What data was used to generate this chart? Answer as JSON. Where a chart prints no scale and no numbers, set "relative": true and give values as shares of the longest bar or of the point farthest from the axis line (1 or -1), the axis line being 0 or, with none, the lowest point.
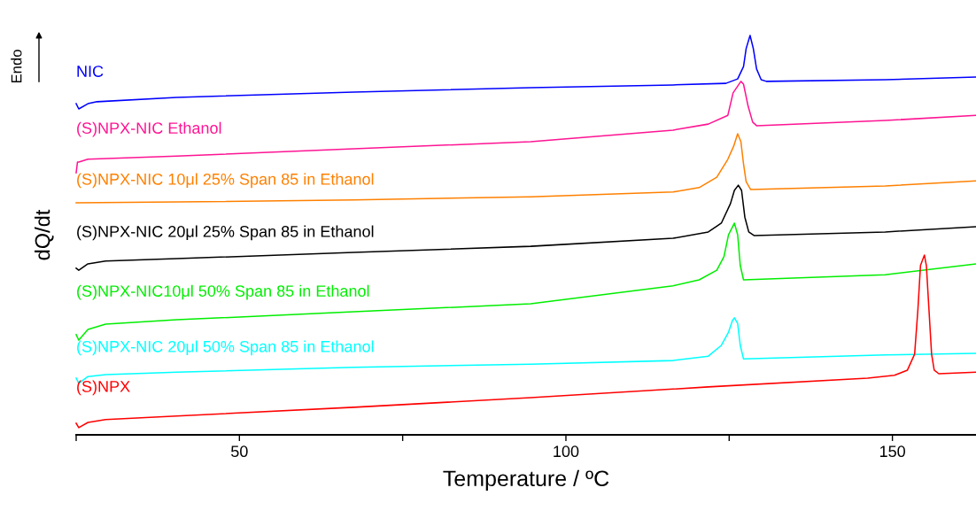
{
  "chart_data": {
    "type": "line",
    "relative": true,
    "xlabel": "Temperature / ºC",
    "ylabel": "dQ/dt",
    "annotations": [
      "Endo"
    ],
    "xlim": [
      25,
      162.8
    ],
    "xticks": [
      {
        "value": 25,
        "label": null
      },
      50,
      {
        "value": 75,
        "label": null
      },
      100,
      {
        "value": 125,
        "label": null
      },
      150
    ],
    "legend": false,
    "grid": false,
    "marker": "none",
    "line_style": "solid",
    "tick_labels": "x",
    "series": [
      {
        "name": "NIC",
        "color": "#0000ff",
        "x": [
          25.0,
          25.4,
          26.8,
          28.2,
          40.4,
          67.5,
          94.6,
          116.4,
          124.5,
          126.3,
          127.2,
          127.6,
          128.2,
          128.7,
          129.2,
          129.9,
          130.7,
          148.9,
          162.8
        ],
        "values": [
          0.829,
          0.816,
          0.829,
          0.834,
          0.845,
          0.858,
          0.869,
          0.876,
          0.88,
          0.891,
          0.922,
          0.967,
          1.0,
          0.967,
          0.916,
          0.889,
          0.885,
          0.889,
          0.896
        ]
      },
      {
        "name": "(S)NPX-NIC Ethanol",
        "color": "#ff1493",
        "x": [
          25.0,
          25.2,
          25.4,
          26.8,
          40.4,
          67.5,
          94.6,
          116.4,
          121.8,
          124.8,
          125.6,
          126.8,
          127.2,
          127.9,
          128.6,
          129.2,
          148.9,
          162.8
        ],
        "values": [
          0.656,
          0.683,
          0.683,
          0.69,
          0.698,
          0.716,
          0.734,
          0.763,
          0.778,
          0.8,
          0.856,
          0.885,
          0.878,
          0.823,
          0.783,
          0.774,
          0.787,
          0.8
        ]
      },
      {
        "name": "(S)NPX-NIC 10μl 25% Span 85 in Ethanol",
        "color": "#ff8000",
        "x": [
          25.0,
          40.4,
          67.5,
          94.6,
          116.4,
          120.4,
          123.1,
          124.8,
          125.7,
          126.3,
          126.8,
          127.2,
          127.6,
          128.3,
          148.9,
          162.8
        ],
        "values": [
          0.581,
          0.583,
          0.588,
          0.596,
          0.608,
          0.619,
          0.645,
          0.69,
          0.723,
          0.754,
          0.734,
          0.678,
          0.634,
          0.614,
          0.623,
          0.636
        ]
      },
      {
        "name": "(S)NPX-NIC 20μl 25% Span 85 in Ethanol",
        "color": "#000000",
        "x": [
          25.0,
          25.4,
          26.8,
          29.5,
          40.4,
          67.5,
          94.6,
          116.4,
          121.8,
          123.8,
          125.2,
          125.8,
          126.4,
          126.9,
          127.4,
          128.0,
          128.8,
          148.9,
          162.8
        ],
        "values": [
          0.417,
          0.412,
          0.428,
          0.435,
          0.441,
          0.457,
          0.472,
          0.492,
          0.508,
          0.53,
          0.579,
          0.612,
          0.625,
          0.612,
          0.545,
          0.508,
          0.499,
          0.508,
          0.521
        ]
      },
      {
        "name": "(S)NPX-NIC10μl 50% Span 85 in Ethanol",
        "color": "#00ee00",
        "x": [
          25.0,
          25.4,
          26.8,
          29.5,
          40.4,
          67.5,
          94.6,
          116.4,
          120.4,
          123.1,
          124.2,
          124.9,
          125.8,
          126.3,
          126.7,
          127.2,
          148.9,
          162.8
        ],
        "values": [
          0.251,
          0.237,
          0.264,
          0.277,
          0.288,
          0.308,
          0.328,
          0.373,
          0.388,
          0.412,
          0.446,
          0.501,
          0.53,
          0.501,
          0.424,
          0.388,
          0.401,
          0.428
        ]
      },
      {
        "name": "(S)NPX-NIC 20μl 50% Span 85 in Ethanol",
        "color": "#00ffff",
        "x": [
          25.0,
          25.4,
          26.8,
          29.5,
          40.4,
          67.5,
          94.6,
          116.4,
          121.8,
          123.8,
          124.9,
          125.5,
          125.8,
          126.3,
          126.7,
          127.2,
          148.9,
          162.8
        ],
        "values": [
          0.142,
          0.129,
          0.146,
          0.151,
          0.157,
          0.169,
          0.177,
          0.186,
          0.197,
          0.224,
          0.257,
          0.286,
          0.293,
          0.279,
          0.224,
          0.19,
          0.2,
          0.204
        ]
      },
      {
        "name": "(S)NPX",
        "color": "#ff0000",
        "x": [
          25.0,
          25.4,
          26.8,
          29.5,
          40.4,
          67.5,
          94.6,
          121.8,
          146.2,
          150.3,
          152.3,
          153.4,
          153.9,
          154.3,
          154.9,
          155.2,
          155.6,
          156.0,
          156.4,
          157.1,
          162.8
        ],
        "values": [
          0.029,
          0.018,
          0.031,
          0.038,
          0.047,
          0.069,
          0.093,
          0.12,
          0.142,
          0.149,
          0.162,
          0.202,
          0.313,
          0.424,
          0.45,
          0.424,
          0.313,
          0.202,
          0.162,
          0.153,
          0.157
        ]
      }
    ]
  }
}
